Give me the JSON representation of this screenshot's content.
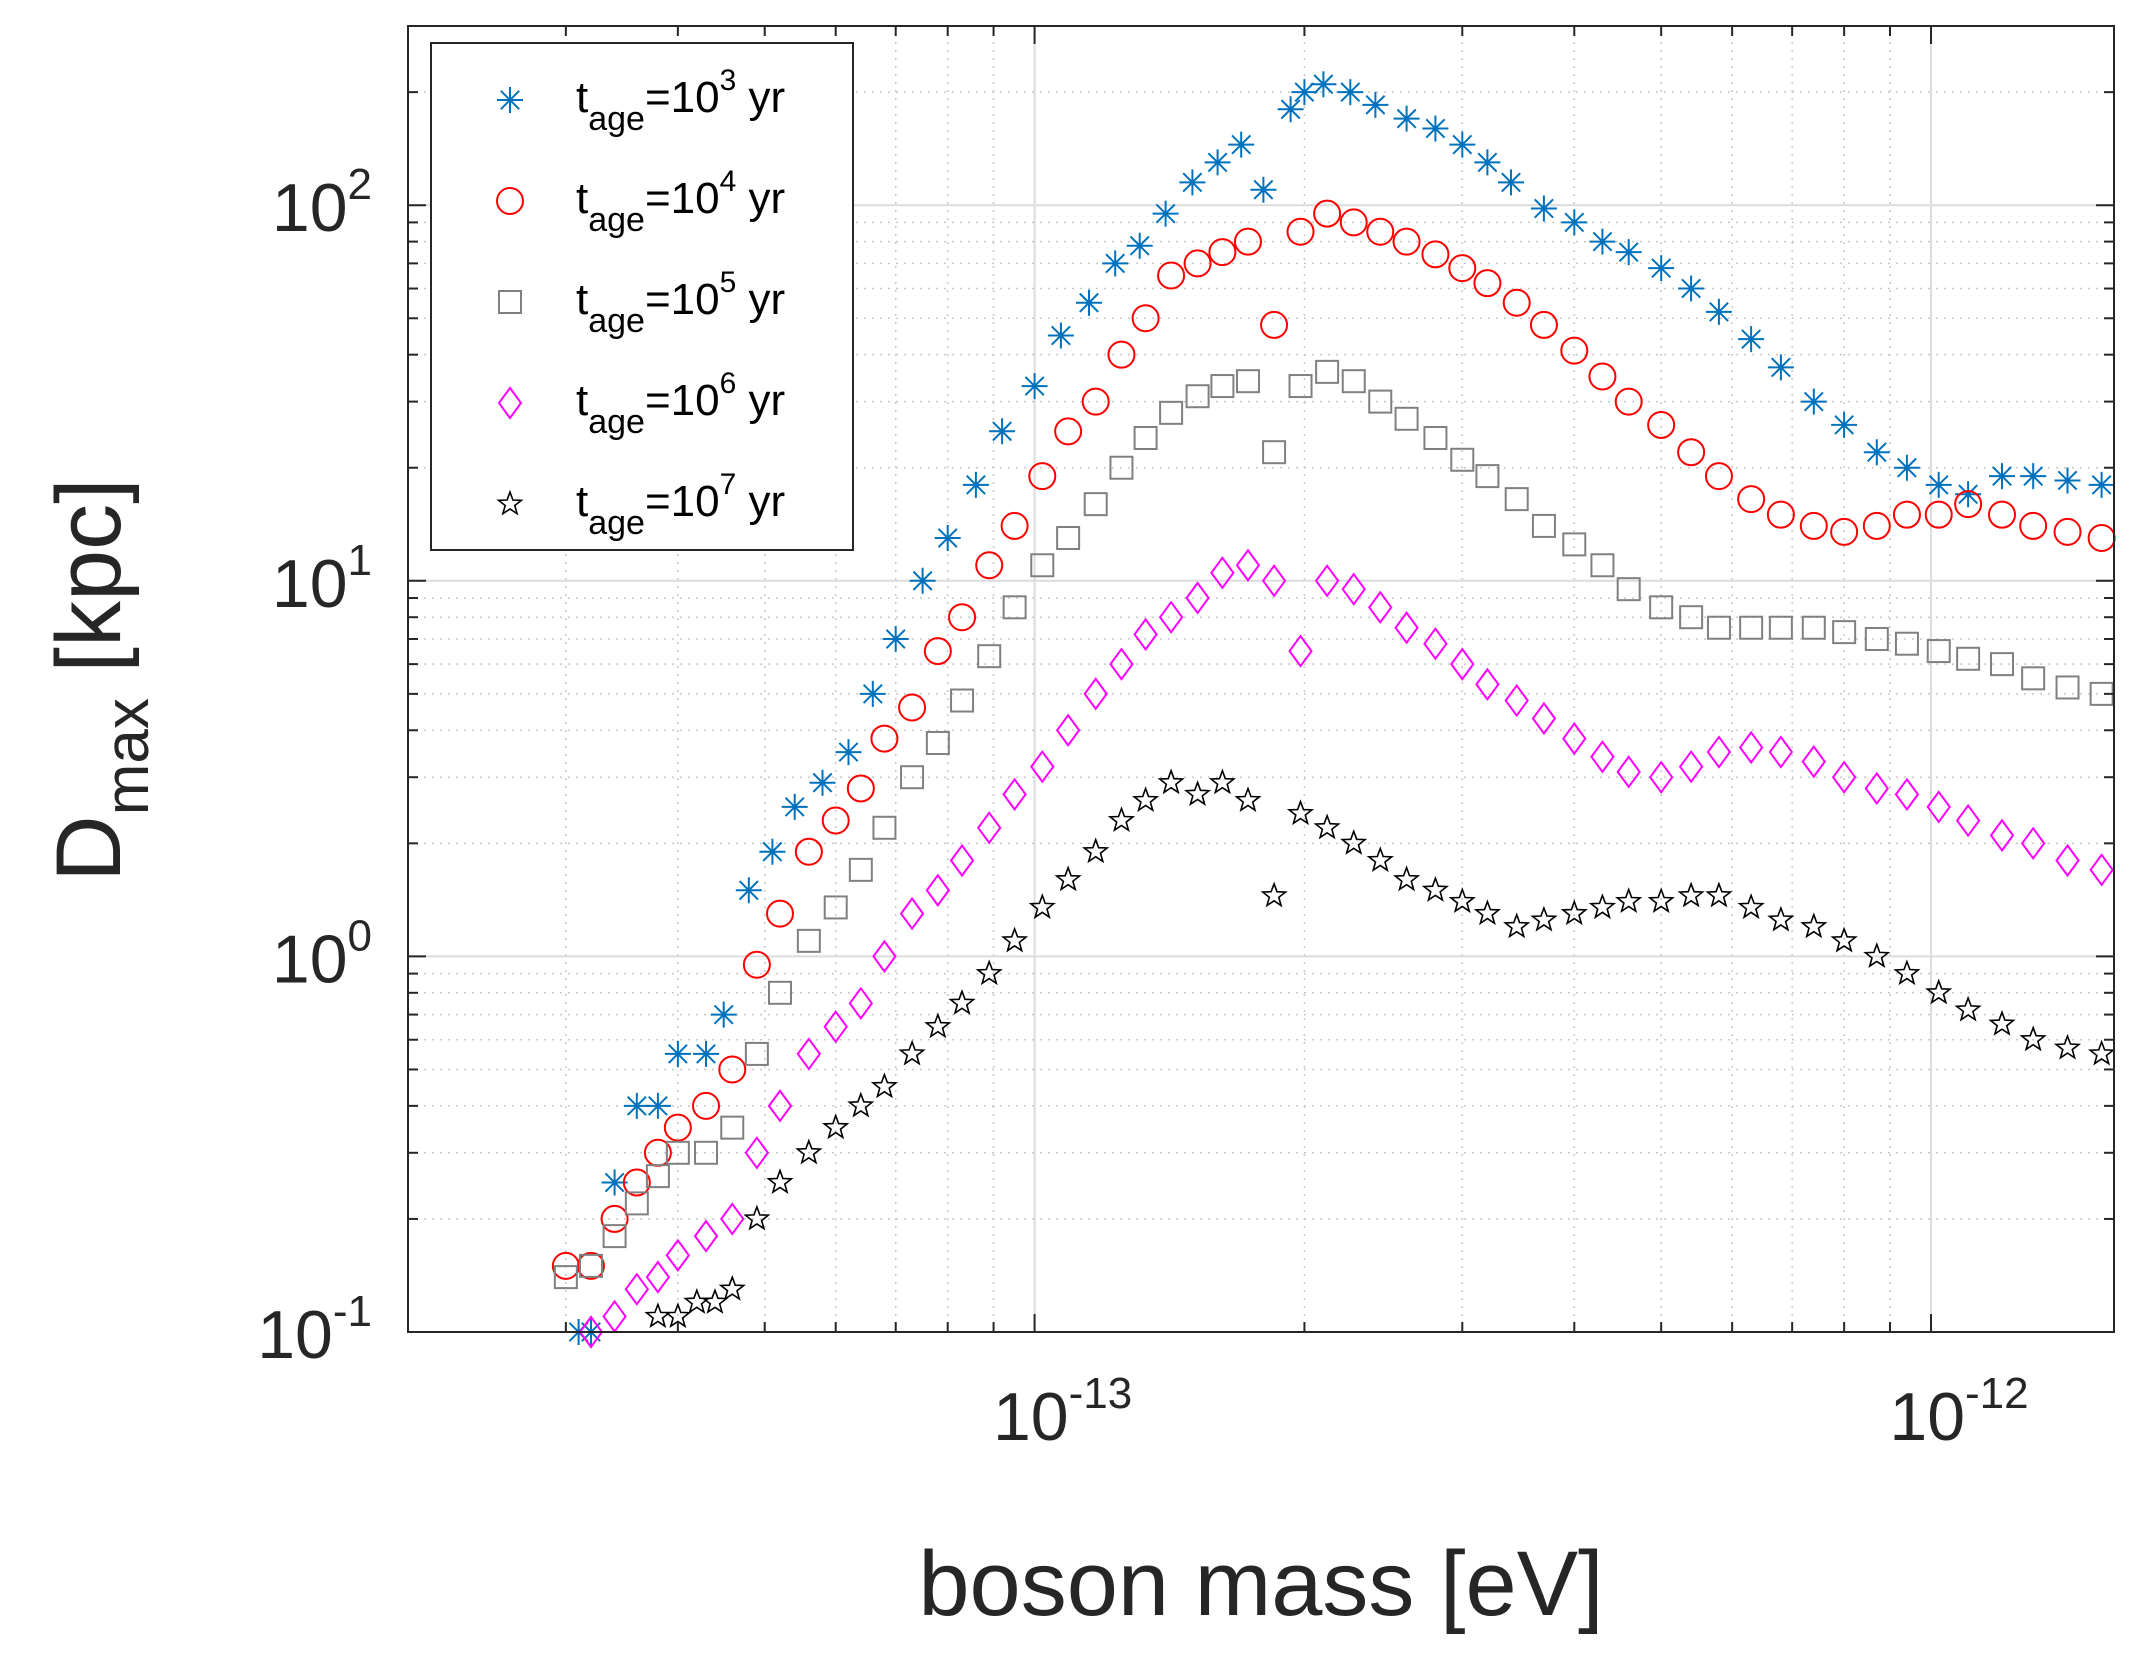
{
  "chart_data": {
    "type": "scatter",
    "xscale": "log",
    "yscale": "log",
    "xlim": [
      2e-14,
      1.6e-12
    ],
    "ylim": [
      0.1,
      300
    ],
    "grid": true,
    "legend_position": "top-left",
    "xlabel": "boson mass [eV]",
    "ylabel": {
      "base": "D",
      "sub": "max",
      "rest": " [kpc]"
    },
    "x_ticks": [
      {
        "value": 1e-13,
        "base": "10",
        "exp": "-13"
      },
      {
        "value": 1e-12,
        "base": "10",
        "exp": "-12"
      }
    ],
    "y_ticks": [
      {
        "value": 0.1,
        "base": "10",
        "exp": "-1"
      },
      {
        "value": 1,
        "base": "10",
        "exp": "0"
      },
      {
        "value": 10,
        "base": "10",
        "exp": "1"
      },
      {
        "value": 100,
        "base": "10",
        "exp": "2"
      }
    ],
    "series": [
      {
        "name": "t_age=10^3 yr",
        "legend": {
          "t": "t",
          "sub": "age",
          "eq": "=10",
          "sup": "3",
          "unit": " yr"
        },
        "marker": "asterisk",
        "color": "#0072BD",
        "x": [
          3.1e-14,
          3.2e-14,
          3.4e-14,
          3.6e-14,
          3.8e-14,
          4e-14,
          4.3e-14,
          4.5e-14,
          4.8e-14,
          5.1e-14,
          5.4e-14,
          5.8e-14,
          6.2e-14,
          6.6e-14,
          7e-14,
          7.5e-14,
          8e-14,
          8.6e-14,
          9.2e-14,
          1e-13,
          1.07e-13,
          1.15e-13,
          1.23e-13,
          1.31e-13,
          1.4e-13,
          1.5e-13,
          1.6e-13,
          1.7e-13,
          1.8e-13,
          1.93e-13,
          2e-13,
          2.1e-13,
          2.25e-13,
          2.4e-13,
          2.6e-13,
          2.8e-13,
          3e-13,
          3.2e-13,
          3.4e-13,
          3.7e-13,
          4e-13,
          4.3e-13,
          4.6e-13,
          5e-13,
          5.4e-13,
          5.8e-13,
          6.3e-13,
          6.8e-13,
          7.4e-13,
          8e-13,
          8.7e-13,
          9.4e-13,
          1.02e-12,
          1.1e-12,
          1.2e-12,
          1.3e-12,
          1.42e-12,
          1.55e-12
        ],
        "y": [
          0.1,
          0.1,
          0.25,
          0.4,
          0.4,
          0.55,
          0.55,
          0.7,
          1.5,
          1.9,
          2.5,
          2.9,
          3.5,
          5.0,
          7.0,
          10.0,
          13.0,
          18.0,
          25.0,
          33.0,
          45.0,
          55.0,
          70.0,
          78.0,
          95.0,
          115.0,
          130.0,
          145.0,
          110.0,
          180.0,
          200.0,
          210.0,
          200.0,
          185.0,
          170.0,
          160.0,
          145.0,
          130.0,
          115.0,
          98.0,
          90.0,
          80.0,
          75.0,
          68.0,
          60.0,
          52.0,
          44.0,
          37.0,
          30.0,
          26.0,
          22.0,
          20.0,
          18.0,
          17.0,
          19.0,
          19.0,
          18.5,
          18.0
        ]
      },
      {
        "name": "t_age=10^4 yr",
        "legend": {
          "t": "t",
          "sub": "age",
          "eq": "=10",
          "sup": "4",
          "unit": " yr"
        },
        "marker": "circle",
        "color": "#FF0000",
        "x": [
          3e-14,
          3.2e-14,
          3.4e-14,
          3.6e-14,
          3.8e-14,
          4e-14,
          4.3e-14,
          4.6e-14,
          4.9e-14,
          5.2e-14,
          5.6e-14,
          6e-14,
          6.4e-14,
          6.8e-14,
          7.3e-14,
          7.8e-14,
          8.3e-14,
          8.9e-14,
          9.5e-14,
          1.02e-13,
          1.09e-13,
          1.17e-13,
          1.25e-13,
          1.33e-13,
          1.42e-13,
          1.52e-13,
          1.62e-13,
          1.73e-13,
          1.85e-13,
          1.98e-13,
          2.12e-13,
          2.27e-13,
          2.43e-13,
          2.6e-13,
          2.8e-13,
          3e-13,
          3.2e-13,
          3.45e-13,
          3.7e-13,
          4e-13,
          4.3e-13,
          4.6e-13,
          5e-13,
          5.4e-13,
          5.8e-13,
          6.3e-13,
          6.8e-13,
          7.4e-13,
          8e-13,
          8.7e-13,
          9.4e-13,
          1.02e-12,
          1.1e-12,
          1.2e-12,
          1.3e-12,
          1.42e-12,
          1.55e-12
        ],
        "y": [
          0.15,
          0.15,
          0.2,
          0.25,
          0.3,
          0.35,
          0.4,
          0.5,
          0.95,
          1.3,
          1.9,
          2.3,
          2.8,
          3.8,
          4.6,
          6.5,
          8.0,
          11.0,
          14.0,
          19.0,
          25.0,
          30.0,
          40.0,
          50.0,
          65.0,
          70.0,
          75.0,
          80.0,
          48.0,
          85.0,
          95.0,
          90.0,
          85.0,
          80.0,
          74.0,
          68.0,
          62.0,
          55.0,
          48.0,
          41.0,
          35.0,
          30.0,
          26.0,
          22.0,
          19.0,
          16.5,
          15.0,
          14.0,
          13.5,
          14.0,
          15.0,
          15.0,
          16.0,
          15.0,
          14.0,
          13.5,
          13.0
        ]
      },
      {
        "name": "t_age=10^5 yr",
        "legend": {
          "t": "t",
          "sub": "age",
          "eq": "=10",
          "sup": "5",
          "unit": " yr"
        },
        "marker": "square",
        "color": "#808080",
        "x": [
          3e-14,
          3.2e-14,
          3.4e-14,
          3.6e-14,
          3.8e-14,
          4e-14,
          4.3e-14,
          4.6e-14,
          4.9e-14,
          5.2e-14,
          5.6e-14,
          6e-14,
          6.4e-14,
          6.8e-14,
          7.3e-14,
          7.8e-14,
          8.3e-14,
          8.9e-14,
          9.5e-14,
          1.02e-13,
          1.09e-13,
          1.17e-13,
          1.25e-13,
          1.33e-13,
          1.42e-13,
          1.52e-13,
          1.62e-13,
          1.73e-13,
          1.85e-13,
          1.98e-13,
          2.12e-13,
          2.27e-13,
          2.43e-13,
          2.6e-13,
          2.8e-13,
          3e-13,
          3.2e-13,
          3.45e-13,
          3.7e-13,
          4e-13,
          4.3e-13,
          4.6e-13,
          5e-13,
          5.4e-13,
          5.8e-13,
          6.3e-13,
          6.8e-13,
          7.4e-13,
          8e-13,
          8.7e-13,
          9.4e-13,
          1.02e-12,
          1.1e-12,
          1.2e-12,
          1.3e-12,
          1.42e-12,
          1.55e-12
        ],
        "y": [
          0.14,
          0.15,
          0.18,
          0.22,
          0.26,
          0.3,
          0.3,
          0.35,
          0.55,
          0.8,
          1.1,
          1.35,
          1.7,
          2.2,
          3.0,
          3.7,
          4.8,
          6.3,
          8.5,
          11.0,
          13.0,
          16.0,
          20.0,
          24.0,
          28.0,
          31.0,
          33.0,
          34.0,
          22.0,
          33.0,
          36.0,
          34.0,
          30.0,
          27.0,
          24.0,
          21.0,
          19.0,
          16.5,
          14.0,
          12.5,
          11.0,
          9.5,
          8.5,
          8.0,
          7.5,
          7.5,
          7.5,
          7.5,
          7.3,
          7.0,
          6.8,
          6.5,
          6.2,
          6.0,
          5.5,
          5.2,
          5.0
        ]
      },
      {
        "name": "t_age=10^6 yr",
        "legend": {
          "t": "t",
          "sub": "age",
          "eq": "=10",
          "sup": "6",
          "unit": " yr"
        },
        "marker": "diamond",
        "color": "#FF00FF",
        "x": [
          3.2e-14,
          3.4e-14,
          3.6e-14,
          3.8e-14,
          4e-14,
          4.3e-14,
          4.6e-14,
          4.9e-14,
          5.2e-14,
          5.6e-14,
          6e-14,
          6.4e-14,
          6.8e-14,
          7.3e-14,
          7.8e-14,
          8.3e-14,
          8.9e-14,
          9.5e-14,
          1.02e-13,
          1.09e-13,
          1.17e-13,
          1.25e-13,
          1.33e-13,
          1.42e-13,
          1.52e-13,
          1.62e-13,
          1.73e-13,
          1.85e-13,
          1.98e-13,
          2.12e-13,
          2.27e-13,
          2.43e-13,
          2.6e-13,
          2.8e-13,
          3e-13,
          3.2e-13,
          3.45e-13,
          3.7e-13,
          4e-13,
          4.3e-13,
          4.6e-13,
          5e-13,
          5.4e-13,
          5.8e-13,
          6.3e-13,
          6.8e-13,
          7.4e-13,
          8e-13,
          8.7e-13,
          9.4e-13,
          1.02e-12,
          1.1e-12,
          1.2e-12,
          1.3e-12,
          1.42e-12,
          1.55e-12
        ],
        "y": [
          0.1,
          0.11,
          0.13,
          0.14,
          0.16,
          0.18,
          0.2,
          0.3,
          0.4,
          0.55,
          0.65,
          0.75,
          1.0,
          1.3,
          1.5,
          1.8,
          2.2,
          2.7,
          3.2,
          4.0,
          5.0,
          6.0,
          7.2,
          8.0,
          9.0,
          10.5,
          11.0,
          10.0,
          6.5,
          10.0,
          9.5,
          8.5,
          7.5,
          6.8,
          6.0,
          5.3,
          4.8,
          4.3,
          3.8,
          3.4,
          3.1,
          3.0,
          3.2,
          3.5,
          3.6,
          3.5,
          3.3,
          3.0,
          2.8,
          2.7,
          2.5,
          2.3,
          2.1,
          2.0,
          1.8,
          1.7
        ]
      },
      {
        "name": "t_age=10^7 yr",
        "legend": {
          "t": "t",
          "sub": "age",
          "eq": "=10",
          "sup": "7",
          "unit": " yr"
        },
        "marker": "pentagram",
        "color": "#000000",
        "x": [
          3.8e-14,
          4e-14,
          4.2e-14,
          4.4e-14,
          4.6e-14,
          4.9e-14,
          5.2e-14,
          5.6e-14,
          6e-14,
          6.4e-14,
          6.8e-14,
          7.3e-14,
          7.8e-14,
          8.3e-14,
          8.9e-14,
          9.5e-14,
          1.02e-13,
          1.09e-13,
          1.17e-13,
          1.25e-13,
          1.33e-13,
          1.42e-13,
          1.52e-13,
          1.62e-13,
          1.73e-13,
          1.85e-13,
          1.98e-13,
          2.12e-13,
          2.27e-13,
          2.43e-13,
          2.6e-13,
          2.8e-13,
          3e-13,
          3.2e-13,
          3.45e-13,
          3.7e-13,
          4e-13,
          4.3e-13,
          4.6e-13,
          5e-13,
          5.4e-13,
          5.8e-13,
          6.3e-13,
          6.8e-13,
          7.4e-13,
          8e-13,
          8.7e-13,
          9.4e-13,
          1.02e-12,
          1.1e-12,
          1.2e-12,
          1.3e-12,
          1.42e-12,
          1.55e-12
        ],
        "y": [
          0.11,
          0.11,
          0.12,
          0.12,
          0.13,
          0.2,
          0.25,
          0.3,
          0.35,
          0.4,
          0.45,
          0.55,
          0.65,
          0.75,
          0.9,
          1.1,
          1.35,
          1.6,
          1.9,
          2.3,
          2.6,
          2.9,
          2.7,
          2.9,
          2.6,
          1.45,
          2.4,
          2.2,
          2.0,
          1.8,
          1.6,
          1.5,
          1.4,
          1.3,
          1.2,
          1.25,
          1.3,
          1.35,
          1.4,
          1.4,
          1.45,
          1.45,
          1.35,
          1.25,
          1.2,
          1.1,
          1.0,
          0.9,
          0.8,
          0.72,
          0.66,
          0.6,
          0.57,
          0.55
        ]
      }
    ]
  }
}
